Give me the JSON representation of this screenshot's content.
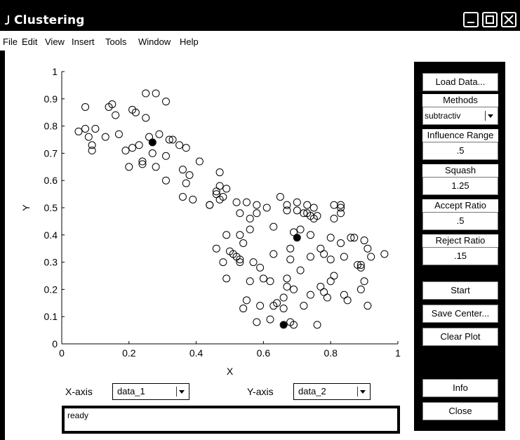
{
  "window": {
    "title": "Clustering",
    "controls": [
      "minimize",
      "maximize",
      "close"
    ]
  },
  "menu": [
    "File",
    "Edit",
    "View",
    "Insert",
    "Tools",
    "Window",
    "Help"
  ],
  "panel": {
    "load_data": "Load Data...",
    "methods_label": "Methods",
    "methods_value": "subtractiv",
    "influence_label": "Influence Range",
    "influence_value": ".5",
    "squash_label": "Squash",
    "squash_value": "1.25",
    "accept_label": "Accept Ratio",
    "accept_value": ".5",
    "reject_label": "Reject Ratio",
    "reject_value": ".15",
    "start": "Start",
    "save_center": "Save Center...",
    "clear_plot": "Clear Plot",
    "info": "Info",
    "close": "Close"
  },
  "bottom": {
    "x_axis_label": "X-axis",
    "x_axis_value": "data_1",
    "y_axis_label": "Y-axis",
    "y_axis_value": "data_2",
    "status": "ready"
  },
  "chart_data": {
    "type": "scatter",
    "xlabel": "X",
    "ylabel": "Y",
    "xlim": [
      0,
      1
    ],
    "ylim": [
      0,
      1
    ],
    "xticks": [
      "0",
      "0.2",
      "0.4",
      "0.6",
      "0.8",
      "1"
    ],
    "yticks": [
      "0",
      "0.1",
      "0.2",
      "0.3",
      "0.4",
      "0.5",
      "0.6",
      "0.7",
      "0.8",
      "0.9",
      "1"
    ],
    "points": [
      [
        0.05,
        0.78
      ],
      [
        0.07,
        0.87
      ],
      [
        0.07,
        0.79
      ],
      [
        0.08,
        0.76
      ],
      [
        0.09,
        0.73
      ],
      [
        0.09,
        0.71
      ],
      [
        0.1,
        0.79
      ],
      [
        0.13,
        0.76
      ],
      [
        0.14,
        0.87
      ],
      [
        0.15,
        0.88
      ],
      [
        0.16,
        0.84
      ],
      [
        0.17,
        0.77
      ],
      [
        0.19,
        0.71
      ],
      [
        0.2,
        0.65
      ],
      [
        0.21,
        0.86
      ],
      [
        0.21,
        0.72
      ],
      [
        0.22,
        0.85
      ],
      [
        0.23,
        0.73
      ],
      [
        0.24,
        0.67
      ],
      [
        0.24,
        0.66
      ],
      [
        0.25,
        0.92
      ],
      [
        0.25,
        0.83
      ],
      [
        0.26,
        0.76
      ],
      [
        0.27,
        0.74
      ],
      [
        0.27,
        0.7
      ],
      [
        0.28,
        0.65
      ],
      [
        0.28,
        0.92
      ],
      [
        0.29,
        0.77
      ],
      [
        0.31,
        0.89
      ],
      [
        0.31,
        0.69
      ],
      [
        0.31,
        0.6
      ],
      [
        0.32,
        0.75
      ],
      [
        0.33,
        0.75
      ],
      [
        0.35,
        0.73
      ],
      [
        0.36,
        0.64
      ],
      [
        0.36,
        0.54
      ],
      [
        0.37,
        0.72
      ],
      [
        0.37,
        0.59
      ],
      [
        0.38,
        0.62
      ],
      [
        0.39,
        0.53
      ],
      [
        0.41,
        0.67
      ],
      [
        0.44,
        0.51
      ],
      [
        0.44,
        0.51
      ],
      [
        0.46,
        0.56
      ],
      [
        0.46,
        0.55
      ],
      [
        0.47,
        0.63
      ],
      [
        0.47,
        0.58
      ],
      [
        0.47,
        0.53
      ],
      [
        0.48,
        0.54
      ],
      [
        0.49,
        0.57
      ],
      [
        0.46,
        0.35
      ],
      [
        0.48,
        0.3
      ],
      [
        0.49,
        0.4
      ],
      [
        0.49,
        0.24
      ],
      [
        0.5,
        0.34
      ],
      [
        0.51,
        0.33
      ],
      [
        0.52,
        0.32
      ],
      [
        0.52,
        0.52
      ],
      [
        0.53,
        0.31
      ],
      [
        0.53,
        0.3
      ],
      [
        0.53,
        0.48
      ],
      [
        0.53,
        0.4
      ],
      [
        0.54,
        0.13
      ],
      [
        0.54,
        0.37
      ],
      [
        0.55,
        0.52
      ],
      [
        0.55,
        0.16
      ],
      [
        0.56,
        0.46
      ],
      [
        0.56,
        0.23
      ],
      [
        0.56,
        0.42
      ],
      [
        0.57,
        0.3
      ],
      [
        0.58,
        0.08
      ],
      [
        0.58,
        0.48
      ],
      [
        0.58,
        0.51
      ],
      [
        0.59,
        0.28
      ],
      [
        0.59,
        0.14
      ],
      [
        0.6,
        0.24
      ],
      [
        0.61,
        0.5
      ],
      [
        0.62,
        0.09
      ],
      [
        0.62,
        0.23
      ],
      [
        0.63,
        0.14
      ],
      [
        0.63,
        0.43
      ],
      [
        0.63,
        0.33
      ],
      [
        0.64,
        0.15
      ],
      [
        0.65,
        0.54
      ],
      [
        0.66,
        0.17
      ],
      [
        0.66,
        0.13
      ],
      [
        0.66,
        0.07
      ],
      [
        0.67,
        0.49
      ],
      [
        0.67,
        0.24
      ],
      [
        0.67,
        0.21
      ],
      [
        0.67,
        0.51
      ],
      [
        0.68,
        0.35
      ],
      [
        0.68,
        0.31
      ],
      [
        0.68,
        0.08
      ],
      [
        0.69,
        0.41
      ],
      [
        0.69,
        0.2
      ],
      [
        0.69,
        0.07
      ],
      [
        0.7,
        0.52
      ],
      [
        0.7,
        0.39
      ],
      [
        0.7,
        0.49
      ],
      [
        0.71,
        0.27
      ],
      [
        0.71,
        0.42
      ],
      [
        0.72,
        0.48
      ],
      [
        0.72,
        0.14
      ],
      [
        0.73,
        0.51
      ],
      [
        0.73,
        0.48
      ],
      [
        0.74,
        0.47
      ],
      [
        0.74,
        0.32
      ],
      [
        0.74,
        0.18
      ],
      [
        0.74,
        0.4
      ],
      [
        0.75,
        0.46
      ],
      [
        0.75,
        0.5
      ],
      [
        0.76,
        0.07
      ],
      [
        0.76,
        0.47
      ],
      [
        0.77,
        0.35
      ],
      [
        0.77,
        0.21
      ],
      [
        0.78,
        0.19
      ],
      [
        0.78,
        0.33
      ],
      [
        0.79,
        0.17
      ],
      [
        0.8,
        0.23
      ],
      [
        0.8,
        0.31
      ],
      [
        0.8,
        0.39
      ],
      [
        0.81,
        0.46
      ],
      [
        0.81,
        0.25
      ],
      [
        0.81,
        0.51
      ],
      [
        0.83,
        0.5
      ],
      [
        0.83,
        0.51
      ],
      [
        0.83,
        0.48
      ],
      [
        0.83,
        0.37
      ],
      [
        0.84,
        0.32
      ],
      [
        0.84,
        0.18
      ],
      [
        0.85,
        0.16
      ],
      [
        0.86,
        0.39
      ],
      [
        0.87,
        0.39
      ],
      [
        0.88,
        0.29
      ],
      [
        0.89,
        0.29
      ],
      [
        0.89,
        0.28
      ],
      [
        0.89,
        0.2
      ],
      [
        0.9,
        0.38
      ],
      [
        0.9,
        0.23
      ],
      [
        0.91,
        0.14
      ],
      [
        0.91,
        0.35
      ],
      [
        0.92,
        0.32
      ],
      [
        0.96,
        0.33
      ]
    ],
    "centers": [
      [
        0.27,
        0.74
      ],
      [
        0.7,
        0.39
      ],
      [
        0.66,
        0.07
      ]
    ]
  }
}
